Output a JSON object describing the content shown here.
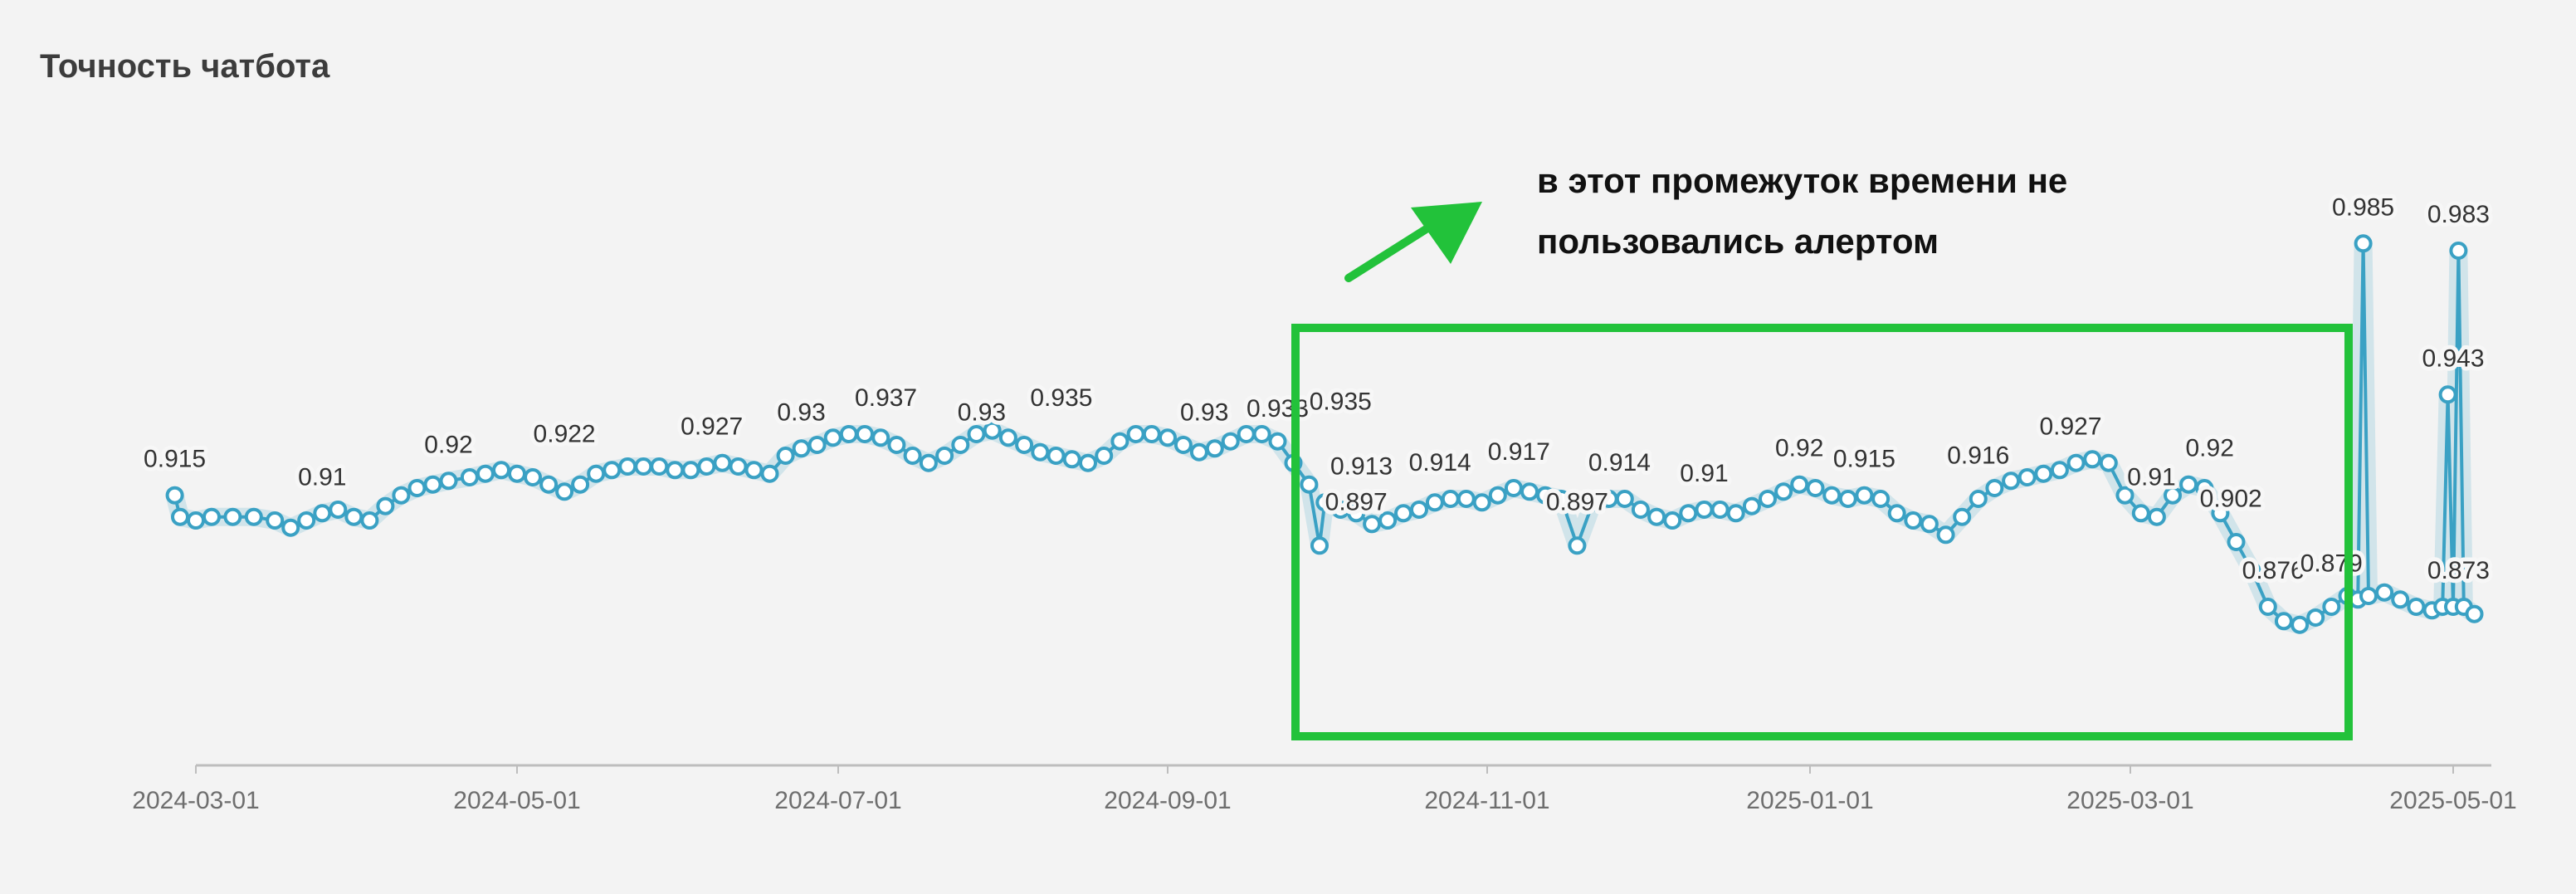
{
  "chart_data": {
    "type": "line",
    "title": "Точность чатбота",
    "x_tick_labels": [
      "2024-03-01",
      "2024-05-01",
      "2024-07-01",
      "2024-09-01",
      "2024-11-01",
      "2025-01-01",
      "2025-03-01",
      "2025-05-01"
    ],
    "ylim": [
      0.845,
      0.995
    ],
    "grid": false,
    "series": [
      {
        "color": "#3aa1c4",
        "points": [
          [
            "2024-02-26",
            0.915
          ],
          [
            "2024-02-27",
            0.909
          ],
          [
            "2024-03-01",
            0.908
          ],
          [
            "2024-03-04",
            0.909
          ],
          [
            "2024-03-08",
            0.909
          ],
          [
            "2024-03-12",
            0.909
          ],
          [
            "2024-03-16",
            0.908
          ],
          [
            "2024-03-19",
            0.906
          ],
          [
            "2024-03-22",
            0.908
          ],
          [
            "2024-03-25",
            0.91
          ],
          [
            "2024-03-28",
            0.911
          ],
          [
            "2024-03-31",
            0.909
          ],
          [
            "2024-04-03",
            0.908
          ],
          [
            "2024-04-06",
            0.912
          ],
          [
            "2024-04-09",
            0.915
          ],
          [
            "2024-04-12",
            0.917
          ],
          [
            "2024-04-15",
            0.918
          ],
          [
            "2024-04-18",
            0.919
          ],
          [
            "2024-04-22",
            0.92
          ],
          [
            "2024-04-25",
            0.921
          ],
          [
            "2024-04-28",
            0.922
          ],
          [
            "2024-05-01",
            0.921
          ],
          [
            "2024-05-04",
            0.92
          ],
          [
            "2024-05-07",
            0.918
          ],
          [
            "2024-05-10",
            0.916
          ],
          [
            "2024-05-13",
            0.918
          ],
          [
            "2024-05-16",
            0.921
          ],
          [
            "2024-05-19",
            0.922
          ],
          [
            "2024-05-22",
            0.923
          ],
          [
            "2024-05-25",
            0.923
          ],
          [
            "2024-05-28",
            0.923
          ],
          [
            "2024-05-31",
            0.922
          ],
          [
            "2024-06-03",
            0.922
          ],
          [
            "2024-06-06",
            0.923
          ],
          [
            "2024-06-09",
            0.924
          ],
          [
            "2024-06-12",
            0.923
          ],
          [
            "2024-06-15",
            0.922
          ],
          [
            "2024-06-18",
            0.921
          ],
          [
            "2024-06-21",
            0.926
          ],
          [
            "2024-06-24",
            0.928
          ],
          [
            "2024-06-27",
            0.929
          ],
          [
            "2024-06-30",
            0.931
          ],
          [
            "2024-07-03",
            0.932
          ],
          [
            "2024-07-06",
            0.932
          ],
          [
            "2024-07-09",
            0.931
          ],
          [
            "2024-07-12",
            0.929
          ],
          [
            "2024-07-15",
            0.926
          ],
          [
            "2024-07-18",
            0.924
          ],
          [
            "2024-07-21",
            0.926
          ],
          [
            "2024-07-24",
            0.929
          ],
          [
            "2024-07-27",
            0.932
          ],
          [
            "2024-07-30",
            0.933
          ],
          [
            "2024-08-02",
            0.931
          ],
          [
            "2024-08-05",
            0.929
          ],
          [
            "2024-08-08",
            0.927
          ],
          [
            "2024-08-11",
            0.926
          ],
          [
            "2024-08-14",
            0.925
          ],
          [
            "2024-08-17",
            0.924
          ],
          [
            "2024-08-20",
            0.926
          ],
          [
            "2024-08-23",
            0.93
          ],
          [
            "2024-08-26",
            0.932
          ],
          [
            "2024-08-29",
            0.932
          ],
          [
            "2024-09-01",
            0.931
          ],
          [
            "2024-09-04",
            0.929
          ],
          [
            "2024-09-07",
            0.927
          ],
          [
            "2024-09-10",
            0.928
          ],
          [
            "2024-09-13",
            0.93
          ],
          [
            "2024-09-16",
            0.932
          ],
          [
            "2024-09-19",
            0.932
          ],
          [
            "2024-09-22",
            0.93
          ],
          [
            "2024-09-25",
            0.924
          ],
          [
            "2024-09-28",
            0.918
          ],
          [
            "2024-09-30",
            0.901
          ],
          [
            "2024-10-01",
            0.913
          ],
          [
            "2024-10-04",
            0.911
          ],
          [
            "2024-10-07",
            0.91
          ],
          [
            "2024-10-10",
            0.907
          ],
          [
            "2024-10-13",
            0.908
          ],
          [
            "2024-10-16",
            0.91
          ],
          [
            "2024-10-19",
            0.911
          ],
          [
            "2024-10-22",
            0.913
          ],
          [
            "2024-10-25",
            0.914
          ],
          [
            "2024-10-28",
            0.914
          ],
          [
            "2024-10-31",
            0.913
          ],
          [
            "2024-11-03",
            0.915
          ],
          [
            "2024-11-06",
            0.917
          ],
          [
            "2024-11-09",
            0.916
          ],
          [
            "2024-11-12",
            0.915
          ],
          [
            "2024-11-15",
            0.914
          ],
          [
            "2024-11-18",
            0.901
          ],
          [
            "2024-11-21",
            0.913
          ],
          [
            "2024-11-24",
            0.914
          ],
          [
            "2024-11-27",
            0.914
          ],
          [
            "2024-11-30",
            0.911
          ],
          [
            "2024-12-03",
            0.909
          ],
          [
            "2024-12-06",
            0.908
          ],
          [
            "2024-12-09",
            0.91
          ],
          [
            "2024-12-12",
            0.911
          ],
          [
            "2024-12-15",
            0.911
          ],
          [
            "2024-12-18",
            0.91
          ],
          [
            "2024-12-21",
            0.912
          ],
          [
            "2024-12-24",
            0.914
          ],
          [
            "2024-12-27",
            0.916
          ],
          [
            "2024-12-30",
            0.918
          ],
          [
            "2025-01-02",
            0.917
          ],
          [
            "2025-01-05",
            0.915
          ],
          [
            "2025-01-08",
            0.914
          ],
          [
            "2025-01-11",
            0.915
          ],
          [
            "2025-01-14",
            0.914
          ],
          [
            "2025-01-17",
            0.91
          ],
          [
            "2025-01-20",
            0.908
          ],
          [
            "2025-01-23",
            0.907
          ],
          [
            "2025-01-26",
            0.904
          ],
          [
            "2025-01-29",
            0.909
          ],
          [
            "2025-02-01",
            0.914
          ],
          [
            "2025-02-04",
            0.917
          ],
          [
            "2025-02-07",
            0.919
          ],
          [
            "2025-02-10",
            0.92
          ],
          [
            "2025-02-13",
            0.921
          ],
          [
            "2025-02-16",
            0.922
          ],
          [
            "2025-02-19",
            0.924
          ],
          [
            "2025-02-22",
            0.925
          ],
          [
            "2025-02-25",
            0.924
          ],
          [
            "2025-02-28",
            0.915
          ],
          [
            "2025-03-03",
            0.91
          ],
          [
            "2025-03-06",
            0.909
          ],
          [
            "2025-03-09",
            0.915
          ],
          [
            "2025-03-12",
            0.918
          ],
          [
            "2025-03-15",
            0.917
          ],
          [
            "2025-03-18",
            0.91
          ],
          [
            "2025-03-21",
            0.902
          ],
          [
            "2025-03-24",
            0.894
          ],
          [
            "2025-03-27",
            0.884
          ],
          [
            "2025-03-30",
            0.88
          ],
          [
            "2025-04-02",
            0.879
          ],
          [
            "2025-04-05",
            0.881
          ],
          [
            "2025-04-08",
            0.884
          ],
          [
            "2025-04-11",
            0.887
          ],
          [
            "2025-04-13",
            0.886
          ],
          [
            "2025-04-14",
            0.985
          ],
          [
            "2025-04-15",
            0.887
          ],
          [
            "2025-04-18",
            0.888
          ],
          [
            "2025-04-21",
            0.886
          ],
          [
            "2025-04-24",
            0.884
          ],
          [
            "2025-04-27",
            0.883
          ],
          [
            "2025-04-29",
            0.884
          ],
          [
            "2025-04-30",
            0.943
          ],
          [
            "2025-05-01",
            0.884
          ],
          [
            "2025-05-02",
            0.983
          ],
          [
            "2025-05-03",
            0.884
          ],
          [
            "2025-05-05",
            0.882
          ]
        ]
      }
    ],
    "labels": [
      {
        "x": "2024-02-26",
        "y": 0.915,
        "text": "0.915"
      },
      {
        "x": "2024-03-25",
        "y": 0.91,
        "text": "0.91"
      },
      {
        "x": "2024-04-18",
        "y": 0.919,
        "text": "0.92"
      },
      {
        "x": "2024-05-10",
        "y": 0.922,
        "text": "0.922"
      },
      {
        "x": "2024-06-07",
        "y": 0.924,
        "text": "0.927"
      },
      {
        "x": "2024-06-24",
        "y": 0.928,
        "text": "0.93"
      },
      {
        "x": "2024-07-10",
        "y": 0.932,
        "text": "0.937"
      },
      {
        "x": "2024-07-28",
        "y": 0.928,
        "text": "0.93"
      },
      {
        "x": "2024-08-12",
        "y": 0.932,
        "text": "0.935"
      },
      {
        "x": "2024-09-08",
        "y": 0.928,
        "text": "0.93"
      },
      {
        "x": "2024-09-22",
        "y": 0.929,
        "text": "0.933"
      },
      {
        "x": "2024-10-04",
        "y": 0.931,
        "text": "0.935"
      },
      {
        "x": "2024-10-08",
        "y": 0.913,
        "text": "0.913"
      },
      {
        "x": "2024-10-07",
        "y": 0.903,
        "text": "0.897"
      },
      {
        "x": "2024-10-23",
        "y": 0.914,
        "text": "0.914"
      },
      {
        "x": "2024-11-07",
        "y": 0.917,
        "text": "0.917"
      },
      {
        "x": "2024-11-18",
        "y": 0.903,
        "text": "0.897"
      },
      {
        "x": "2024-11-26",
        "y": 0.914,
        "text": "0.914"
      },
      {
        "x": "2024-12-12",
        "y": 0.911,
        "text": "0.91"
      },
      {
        "x": "2024-12-30",
        "y": 0.918,
        "text": "0.92"
      },
      {
        "x": "2025-01-11",
        "y": 0.915,
        "text": "0.915"
      },
      {
        "x": "2025-02-01",
        "y": 0.916,
        "text": "0.916"
      },
      {
        "x": "2025-02-18",
        "y": 0.924,
        "text": "0.927"
      },
      {
        "x": "2025-03-05",
        "y": 0.91,
        "text": "0.91"
      },
      {
        "x": "2025-03-16",
        "y": 0.918,
        "text": "0.92"
      },
      {
        "x": "2025-03-20",
        "y": 0.904,
        "text": "0.902"
      },
      {
        "x": "2025-03-28",
        "y": 0.884,
        "text": "0.876"
      },
      {
        "x": "2025-04-08",
        "y": 0.886,
        "text": "0.879"
      },
      {
        "x": "2025-04-14",
        "y": 0.985,
        "text": "0.985"
      },
      {
        "x": "2025-05-01",
        "y": 0.943,
        "text": "0.943"
      },
      {
        "x": "2025-05-02",
        "y": 0.983,
        "text": "0.983"
      },
      {
        "x": "2025-05-02",
        "y": 0.884,
        "text": "0.873"
      }
    ],
    "annotation": {
      "text_line1": "в этот промежуток времени не",
      "text_line2": "пользовались алертом",
      "box_color": "#22c23a",
      "arrow_color": "#22c23a"
    }
  }
}
